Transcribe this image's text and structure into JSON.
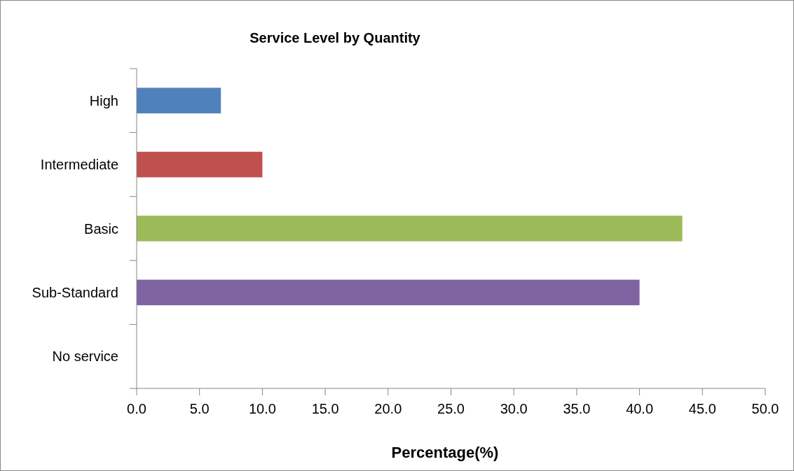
{
  "chart_data": {
    "type": "bar",
    "orientation": "horizontal",
    "title": "Service Level by Quantity",
    "xlabel": "Percentage(%)",
    "categories": [
      "High",
      "Intermediate",
      "Basic",
      "Sub-Standard",
      "No service"
    ],
    "values": [
      6.7,
      10.0,
      43.4,
      40.0,
      0
    ],
    "colors": [
      "#4f81bd",
      "#c0504d",
      "#9bbb59",
      "#8064a2",
      "#4bacc6"
    ],
    "xlim": [
      0,
      50
    ],
    "xticks": [
      {
        "value": 0,
        "label": "0.0"
      },
      {
        "value": 5,
        "label": "5.0"
      },
      {
        "value": 10,
        "label": "10.0"
      },
      {
        "value": 15,
        "label": "15.0"
      },
      {
        "value": 20,
        "label": "20.0"
      },
      {
        "value": 25,
        "label": "25.0"
      },
      {
        "value": 30,
        "label": "30.0"
      },
      {
        "value": 35,
        "label": "35.0"
      },
      {
        "value": 40,
        "label": "40.0"
      },
      {
        "value": 45,
        "label": "45.0"
      },
      {
        "value": 50,
        "label": "50.0"
      }
    ],
    "grid": false
  }
}
